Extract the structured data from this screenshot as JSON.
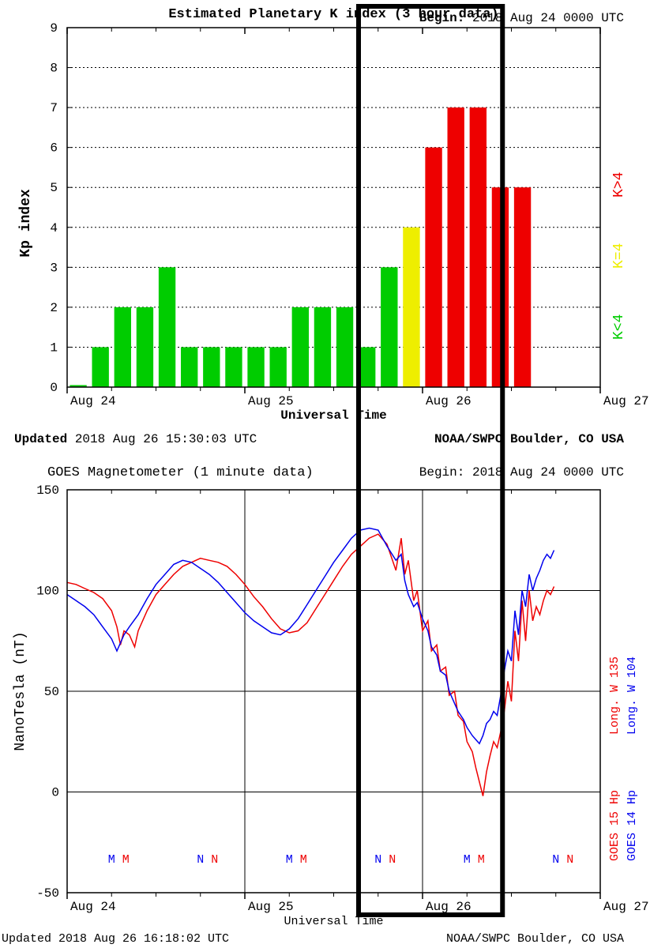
{
  "topChart": {
    "type": "bar",
    "title": "Estimated Planetary K index (3 hour data)",
    "title_fontweight": "bold",
    "title_fontsize": 17,
    "begin_label": "Begin:",
    "begin_value": "2018 Aug 24 0000 UTC",
    "ylabel": "Kp index",
    "xlabel": "Universal Time",
    "updated_label": "Updated",
    "updated_value": "2018 Aug 26 15:30:03 UTC",
    "source": "NOAA/SWPC Boulder, CO USA",
    "ylim": [
      0,
      9
    ],
    "yticks": [
      0,
      1,
      2,
      3,
      4,
      5,
      6,
      7,
      8,
      9
    ],
    "xticks": [
      "Aug 24",
      "Aug 25",
      "Aug 26",
      "Aug 27"
    ],
    "bars": [
      {
        "i": 0,
        "v": 0.05,
        "c": "#00cc00"
      },
      {
        "i": 1,
        "v": 1,
        "c": "#00cc00"
      },
      {
        "i": 2,
        "v": 2,
        "c": "#00cc00"
      },
      {
        "i": 3,
        "v": 2,
        "c": "#00cc00"
      },
      {
        "i": 4,
        "v": 3,
        "c": "#00cc00"
      },
      {
        "i": 5,
        "v": 1,
        "c": "#00cc00"
      },
      {
        "i": 6,
        "v": 1,
        "c": "#00cc00"
      },
      {
        "i": 7,
        "v": 1,
        "c": "#00cc00"
      },
      {
        "i": 8,
        "v": 1,
        "c": "#00cc00"
      },
      {
        "i": 9,
        "v": 1,
        "c": "#00cc00"
      },
      {
        "i": 10,
        "v": 2,
        "c": "#00cc00"
      },
      {
        "i": 11,
        "v": 2,
        "c": "#00cc00"
      },
      {
        "i": 12,
        "v": 2,
        "c": "#00cc00"
      },
      {
        "i": 13,
        "v": 1,
        "c": "#00cc00"
      },
      {
        "i": 14,
        "v": 3,
        "c": "#00cc00"
      },
      {
        "i": 15,
        "v": 4,
        "c": "#eeee00"
      },
      {
        "i": 16,
        "v": 6,
        "c": "#ee0000"
      },
      {
        "i": 17,
        "v": 7,
        "c": "#ee0000"
      },
      {
        "i": 18,
        "v": 7,
        "c": "#ee0000"
      },
      {
        "i": 19,
        "v": 5,
        "c": "#ee0000"
      },
      {
        "i": 20,
        "v": 5,
        "c": "#ee0000"
      }
    ],
    "legend": [
      {
        "label": "K<4",
        "color": "#00cc00"
      },
      {
        "label": "K=4",
        "color": "#eeee00"
      },
      {
        "label": "K>4",
        "color": "#ee0000"
      }
    ],
    "plot_bg": "#ffffff",
    "grid_color": "#000000",
    "axis_color": "#000000",
    "label_fontsize": 16
  },
  "bottomChart": {
    "type": "line",
    "title": "GOES Magnetometer (1 minute data)",
    "title_fontsize": 17,
    "begin_label": "Begin:",
    "begin_value": "2018 Aug 24 0000 UTC",
    "ylabel": "NanoTesla (nT)",
    "xlabel": "Universal Time",
    "updated_label": "Updated",
    "updated_value": "2018 Aug 26 16:18:02 UTC",
    "source": "NOAA/SWPC Boulder, CO USA",
    "ylim": [
      -50,
      150
    ],
    "yticks": [
      -50,
      0,
      50,
      100,
      150
    ],
    "xticks": [
      "Aug 24",
      "Aug 25",
      "Aug 26",
      "Aug 27"
    ],
    "series": [
      {
        "name": "GOES 15 Hp",
        "longitude": "Long. W 135",
        "color": "#ee0000",
        "points": [
          [
            0,
            104
          ],
          [
            0.05,
            103
          ],
          [
            0.1,
            101
          ],
          [
            0.15,
            99
          ],
          [
            0.2,
            96
          ],
          [
            0.25,
            90
          ],
          [
            0.28,
            82
          ],
          [
            0.3,
            73
          ],
          [
            0.32,
            80
          ],
          [
            0.35,
            78
          ],
          [
            0.38,
            72
          ],
          [
            0.4,
            80
          ],
          [
            0.45,
            90
          ],
          [
            0.5,
            98
          ],
          [
            0.55,
            103
          ],
          [
            0.6,
            108
          ],
          [
            0.65,
            112
          ],
          [
            0.7,
            114
          ],
          [
            0.75,
            116
          ],
          [
            0.8,
            115
          ],
          [
            0.85,
            114
          ],
          [
            0.9,
            112
          ],
          [
            0.95,
            108
          ],
          [
            1.0,
            103
          ],
          [
            1.05,
            97
          ],
          [
            1.1,
            92
          ],
          [
            1.15,
            86
          ],
          [
            1.2,
            81
          ],
          [
            1.25,
            79
          ],
          [
            1.3,
            80
          ],
          [
            1.35,
            84
          ],
          [
            1.4,
            91
          ],
          [
            1.45,
            98
          ],
          [
            1.5,
            105
          ],
          [
            1.55,
            112
          ],
          [
            1.6,
            118
          ],
          [
            1.65,
            122
          ],
          [
            1.7,
            126
          ],
          [
            1.75,
            128
          ],
          [
            1.8,
            123
          ],
          [
            1.85,
            110
          ],
          [
            1.88,
            126
          ],
          [
            1.9,
            108
          ],
          [
            1.92,
            115
          ],
          [
            1.95,
            95
          ],
          [
            1.97,
            100
          ],
          [
            2.0,
            80
          ],
          [
            2.03,
            85
          ],
          [
            2.05,
            70
          ],
          [
            2.08,
            73
          ],
          [
            2.1,
            60
          ],
          [
            2.13,
            62
          ],
          [
            2.15,
            48
          ],
          [
            2.18,
            50
          ],
          [
            2.2,
            38
          ],
          [
            2.23,
            35
          ],
          [
            2.25,
            25
          ],
          [
            2.28,
            20
          ],
          [
            2.3,
            12
          ],
          [
            2.32,
            5
          ],
          [
            2.34,
            -2
          ],
          [
            2.36,
            10
          ],
          [
            2.38,
            18
          ],
          [
            2.4,
            25
          ],
          [
            2.42,
            22
          ],
          [
            2.44,
            30
          ],
          [
            2.46,
            40
          ],
          [
            2.48,
            55
          ],
          [
            2.5,
            45
          ],
          [
            2.52,
            80
          ],
          [
            2.54,
            65
          ],
          [
            2.56,
            95
          ],
          [
            2.58,
            75
          ],
          [
            2.6,
            100
          ],
          [
            2.62,
            85
          ],
          [
            2.64,
            92
          ],
          [
            2.66,
            88
          ],
          [
            2.68,
            95
          ],
          [
            2.7,
            100
          ],
          [
            2.72,
            98
          ],
          [
            2.74,
            102
          ]
        ]
      },
      {
        "name": "GOES 14 Hp",
        "longitude": "Long. W 104",
        "color": "#0000ee",
        "points": [
          [
            0,
            98
          ],
          [
            0.05,
            95
          ],
          [
            0.1,
            92
          ],
          [
            0.15,
            88
          ],
          [
            0.2,
            82
          ],
          [
            0.25,
            76
          ],
          [
            0.28,
            70
          ],
          [
            0.3,
            74
          ],
          [
            0.32,
            78
          ],
          [
            0.35,
            82
          ],
          [
            0.4,
            88
          ],
          [
            0.45,
            96
          ],
          [
            0.5,
            103
          ],
          [
            0.55,
            108
          ],
          [
            0.6,
            113
          ],
          [
            0.65,
            115
          ],
          [
            0.7,
            114
          ],
          [
            0.75,
            111
          ],
          [
            0.8,
            108
          ],
          [
            0.85,
            104
          ],
          [
            0.9,
            99
          ],
          [
            0.95,
            94
          ],
          [
            1.0,
            89
          ],
          [
            1.05,
            85
          ],
          [
            1.1,
            82
          ],
          [
            1.15,
            79
          ],
          [
            1.2,
            78
          ],
          [
            1.25,
            81
          ],
          [
            1.3,
            86
          ],
          [
            1.35,
            93
          ],
          [
            1.4,
            100
          ],
          [
            1.45,
            107
          ],
          [
            1.5,
            114
          ],
          [
            1.55,
            120
          ],
          [
            1.6,
            126
          ],
          [
            1.65,
            130
          ],
          [
            1.7,
            131
          ],
          [
            1.75,
            130
          ],
          [
            1.8,
            122
          ],
          [
            1.85,
            115
          ],
          [
            1.88,
            118
          ],
          [
            1.9,
            105
          ],
          [
            1.92,
            98
          ],
          [
            1.95,
            92
          ],
          [
            1.97,
            94
          ],
          [
            2.0,
            86
          ],
          [
            2.03,
            80
          ],
          [
            2.05,
            72
          ],
          [
            2.08,
            68
          ],
          [
            2.1,
            60
          ],
          [
            2.13,
            58
          ],
          [
            2.15,
            50
          ],
          [
            2.18,
            44
          ],
          [
            2.2,
            40
          ],
          [
            2.23,
            36
          ],
          [
            2.25,
            32
          ],
          [
            2.28,
            28
          ],
          [
            2.3,
            26
          ],
          [
            2.32,
            24
          ],
          [
            2.34,
            28
          ],
          [
            2.36,
            34
          ],
          [
            2.38,
            36
          ],
          [
            2.4,
            40
          ],
          [
            2.42,
            38
          ],
          [
            2.44,
            48
          ],
          [
            2.46,
            60
          ],
          [
            2.48,
            70
          ],
          [
            2.5,
            65
          ],
          [
            2.52,
            90
          ],
          [
            2.54,
            78
          ],
          [
            2.56,
            100
          ],
          [
            2.58,
            92
          ],
          [
            2.6,
            108
          ],
          [
            2.62,
            100
          ],
          [
            2.64,
            106
          ],
          [
            2.66,
            110
          ],
          [
            2.68,
            115
          ],
          [
            2.7,
            118
          ],
          [
            2.72,
            116
          ],
          [
            2.74,
            120
          ]
        ]
      }
    ],
    "markers": [
      {
        "x": 0.25,
        "label": "M",
        "color": "#0000ee"
      },
      {
        "x": 0.33,
        "label": "M",
        "color": "#ee0000"
      },
      {
        "x": 0.75,
        "label": "N",
        "color": "#0000ee"
      },
      {
        "x": 0.83,
        "label": "N",
        "color": "#ee0000"
      },
      {
        "x": 1.25,
        "label": "M",
        "color": "#0000ee"
      },
      {
        "x": 1.33,
        "label": "M",
        "color": "#ee0000"
      },
      {
        "x": 1.75,
        "label": "N",
        "color": "#0000ee"
      },
      {
        "x": 1.83,
        "label": "N",
        "color": "#ee0000"
      },
      {
        "x": 2.25,
        "label": "M",
        "color": "#0000ee"
      },
      {
        "x": 2.33,
        "label": "M",
        "color": "#ee0000"
      },
      {
        "x": 2.75,
        "label": "N",
        "color": "#0000ee"
      },
      {
        "x": 2.83,
        "label": "N",
        "color": "#ee0000"
      }
    ],
    "plot_bg": "#ffffff",
    "grid_color": "#000000",
    "axis_color": "#000000",
    "label_fontsize": 16
  },
  "highlightBox": {
    "color": "#000000",
    "strokeWidth": 6,
    "day_index": 2
  }
}
